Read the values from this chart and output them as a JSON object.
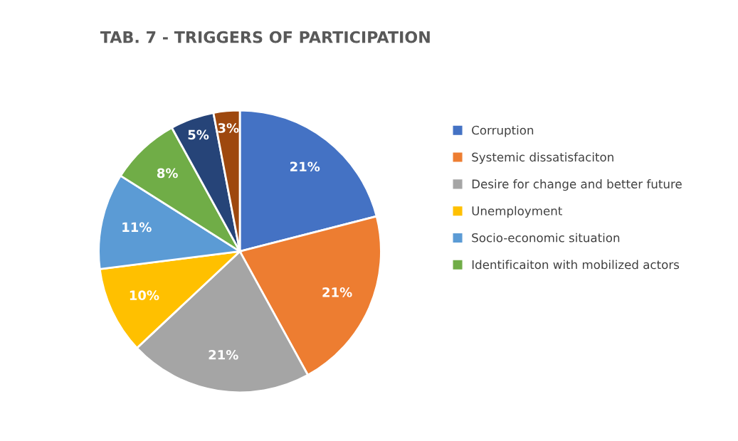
{
  "chart_data": {
    "type": "pie",
    "title": "TAB. 7 - TRIGGERS OF PARTICIPATION",
    "categories": [
      "Corruption",
      "Systemic dissatisfaciton",
      "Desire for change and better future",
      "Unemployment",
      "Socio-economic situation",
      "Identificaiton with mobilized actors",
      null,
      null
    ],
    "values": [
      21,
      21,
      21,
      10,
      11,
      8,
      5,
      3
    ],
    "value_labels": [
      "21%",
      "21%",
      "21%",
      "10%",
      "11%",
      "8%",
      "5%",
      "3%"
    ],
    "colors": [
      "#4472c4",
      "#ed7d31",
      "#a5a5a5",
      "#ffc000",
      "#5b9bd5",
      "#70ad47",
      "#264478",
      "#9e480e"
    ],
    "legend": "right"
  }
}
